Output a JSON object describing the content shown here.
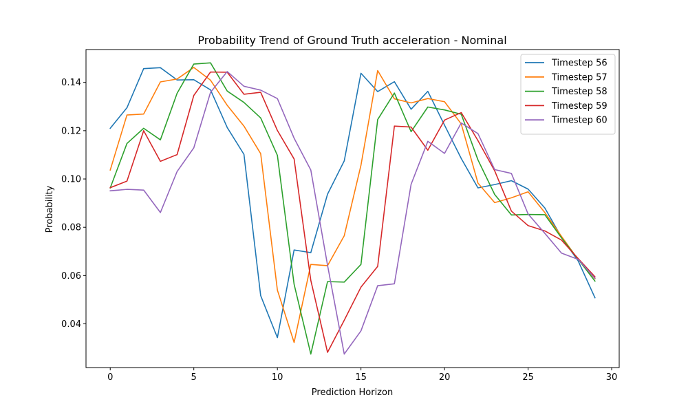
{
  "chart_data": {
    "type": "line",
    "title": "Probability Trend of Ground Truth acceleration - Nominal",
    "xlabel": "Prediction Horizon",
    "ylabel": "Probability",
    "xlim": [
      -1.45,
      30.45
    ],
    "ylim": [
      0.0219,
      0.1536
    ],
    "xticks": [
      "0",
      "5",
      "10",
      "15",
      "20",
      "25",
      "30"
    ],
    "yticks": [
      "0.04",
      "0.06",
      "0.08",
      "0.10",
      "0.12",
      "0.14"
    ],
    "grid": false,
    "legend_position": "top-right",
    "x": [
      0,
      1,
      2,
      3,
      4,
      5,
      6,
      7,
      8,
      9,
      10,
      11,
      12,
      13,
      14,
      15,
      16,
      17,
      18,
      19,
      20,
      21,
      22,
      23,
      24,
      25,
      26,
      27,
      28,
      29
    ],
    "series": [
      {
        "name": "Timestep 56",
        "color": "#1f77b4",
        "values": [
          0.121,
          0.1295,
          0.1457,
          0.1461,
          0.141,
          0.1411,
          0.1369,
          0.1213,
          0.1102,
          0.0517,
          0.0343,
          0.0706,
          0.0695,
          0.0937,
          0.1075,
          0.1438,
          0.1362,
          0.1403,
          0.1289,
          0.1363,
          0.1223,
          0.1085,
          0.0963,
          0.0977,
          0.0993,
          0.0958,
          0.088,
          0.0758,
          0.066,
          0.0508
        ]
      },
      {
        "name": "Timestep 57",
        "color": "#ff7f0e",
        "values": [
          0.1037,
          0.1265,
          0.1269,
          0.1402,
          0.1414,
          0.1462,
          0.1409,
          0.1305,
          0.1219,
          0.1105,
          0.054,
          0.0323,
          0.0646,
          0.0641,
          0.0765,
          0.1057,
          0.1449,
          0.1332,
          0.1315,
          0.1333,
          0.132,
          0.1228,
          0.0983,
          0.0902,
          0.0922,
          0.0947,
          0.0861,
          0.0762,
          0.0666,
          0.0587
        ]
      },
      {
        "name": "Timestep 58",
        "color": "#2ca02c",
        "values": [
          0.0963,
          0.1147,
          0.121,
          0.1162,
          0.1355,
          0.1476,
          0.1481,
          0.1364,
          0.1317,
          0.1253,
          0.1098,
          0.0564,
          0.0275,
          0.0575,
          0.0573,
          0.0646,
          0.1246,
          0.1356,
          0.1196,
          0.1298,
          0.1286,
          0.1268,
          0.1079,
          0.0936,
          0.0851,
          0.0853,
          0.0852,
          0.0756,
          0.0667,
          0.0577
        ]
      },
      {
        "name": "Timestep 59",
        "color": "#d62728",
        "values": [
          0.0964,
          0.0991,
          0.12,
          0.1073,
          0.1101,
          0.1346,
          0.1443,
          0.1442,
          0.1351,
          0.1359,
          0.1201,
          0.1083,
          0.058,
          0.0282,
          0.0415,
          0.0552,
          0.0638,
          0.1219,
          0.1215,
          0.1119,
          0.1244,
          0.1275,
          0.1159,
          0.1034,
          0.0867,
          0.0807,
          0.0785,
          0.0747,
          0.067,
          0.0595
        ]
      },
      {
        "name": "Timestep 60",
        "color": "#9467bd",
        "values": [
          0.0951,
          0.0957,
          0.0954,
          0.0861,
          0.1031,
          0.1129,
          0.1359,
          0.1445,
          0.1384,
          0.1368,
          0.1333,
          0.1169,
          0.1037,
          0.0643,
          0.0275,
          0.0371,
          0.0558,
          0.0566,
          0.0978,
          0.1156,
          0.1106,
          0.1232,
          0.1188,
          0.1039,
          0.1023,
          0.0855,
          0.0775,
          0.0693,
          0.0667,
          0.0589
        ]
      }
    ]
  }
}
